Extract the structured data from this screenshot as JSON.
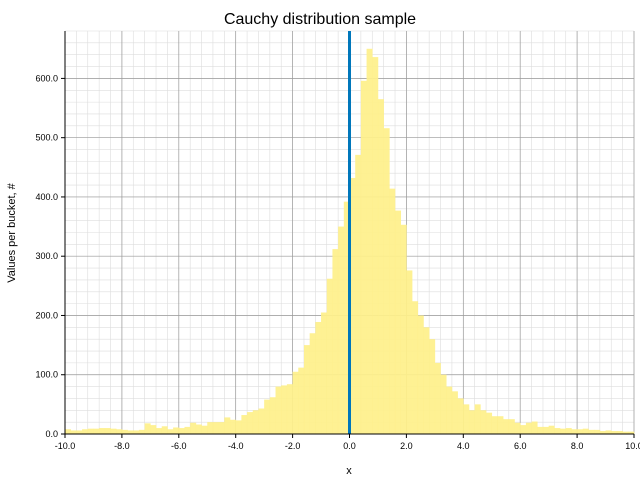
{
  "chart_data": {
    "type": "bar",
    "title": "Cauchy distribution sample",
    "xlabel": "x",
    "ylabel": "Values per bucket, #",
    "xlim": [
      -10,
      10
    ],
    "ylim": [
      0,
      680
    ],
    "x_ticks": [
      -10,
      -8,
      -6,
      -4,
      -2,
      0,
      2,
      4,
      6,
      8,
      10
    ],
    "x_tick_labels": [
      "-10.0",
      "-8.0",
      "-6.0",
      "-4.0",
      "-2.0",
      "0.0",
      "2.0",
      "4.0",
      "6.0",
      "8.0",
      "10.0"
    ],
    "y_ticks": [
      0,
      100,
      200,
      300,
      400,
      500,
      600
    ],
    "y_tick_labels": [
      "0.0",
      "100.0",
      "200.0",
      "300.0",
      "400.0",
      "500.0",
      "600.0"
    ],
    "grid": true,
    "bin_width": 0.2,
    "bin_start": -10,
    "values": [
      8,
      6,
      6,
      8,
      9,
      9,
      10,
      10,
      9,
      8,
      7,
      6,
      6,
      7,
      18,
      15,
      10,
      13,
      8,
      11,
      10,
      12,
      19,
      16,
      14,
      20,
      20,
      20,
      28,
      24,
      23,
      32,
      37,
      40,
      43,
      58,
      62,
      80,
      82,
      84,
      105,
      112,
      150,
      170,
      189,
      205,
      262,
      312,
      350,
      392,
      432,
      471,
      596,
      650,
      636,
      565,
      516,
      414,
      377,
      353,
      276,
      224,
      200,
      180,
      160,
      120,
      100,
      80,
      72,
      60,
      50,
      40,
      50,
      40,
      36,
      30,
      30,
      25,
      25,
      19,
      15,
      19,
      21,
      12,
      12,
      14,
      10,
      9,
      10,
      8,
      8,
      9,
      7,
      7,
      5,
      6,
      5,
      5,
      4,
      4
    ]
  },
  "colors": {
    "bar_fill": "#fef08a",
    "bar_edge": "#f7df6e",
    "marker_line": "#0077bb",
    "grid_major": "#9a9a9a",
    "grid_minor": "#dddddd"
  }
}
